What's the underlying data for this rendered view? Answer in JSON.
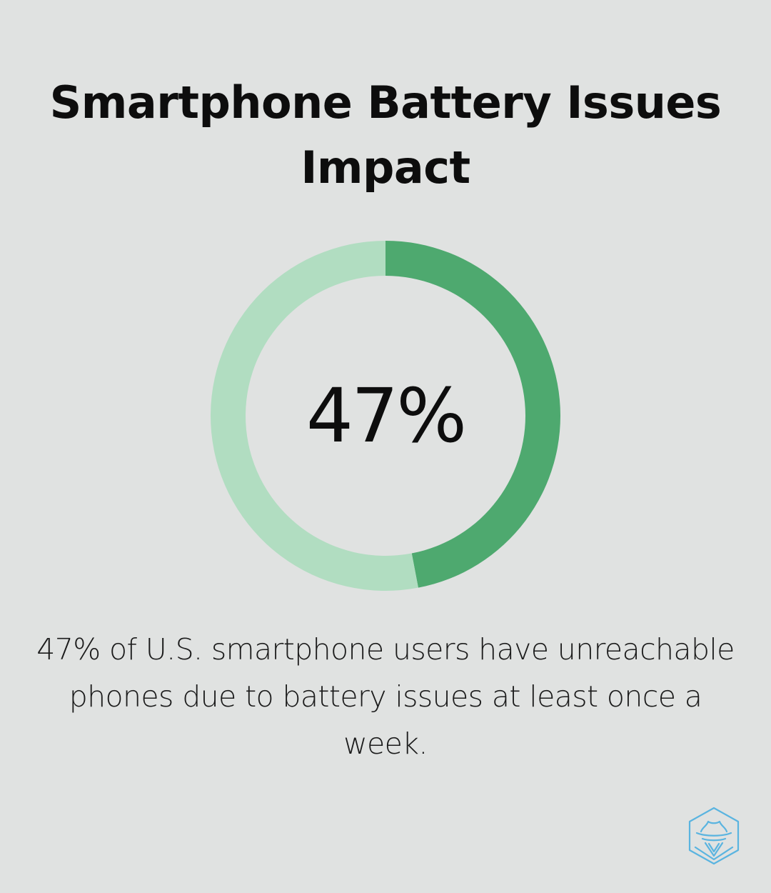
{
  "title": "Smartphone Battery Issues Impact",
  "chart_data": {
    "type": "pie",
    "variant": "donut",
    "center_label": "47%",
    "slices": [
      {
        "value": 47,
        "color": "#4ea96f"
      },
      {
        "value": 53,
        "color": "#b1ddc1"
      }
    ]
  },
  "caption": "47% of U.S. smartphone users have unreachable phones due to battery issues at least once a week.",
  "colors": {
    "background": "#e0e2e1",
    "highlight": "#4ea96f",
    "remainder": "#b1ddc1",
    "logo": "#5ab4e0"
  },
  "logo_icon": "spy-hat-hexagon-icon"
}
